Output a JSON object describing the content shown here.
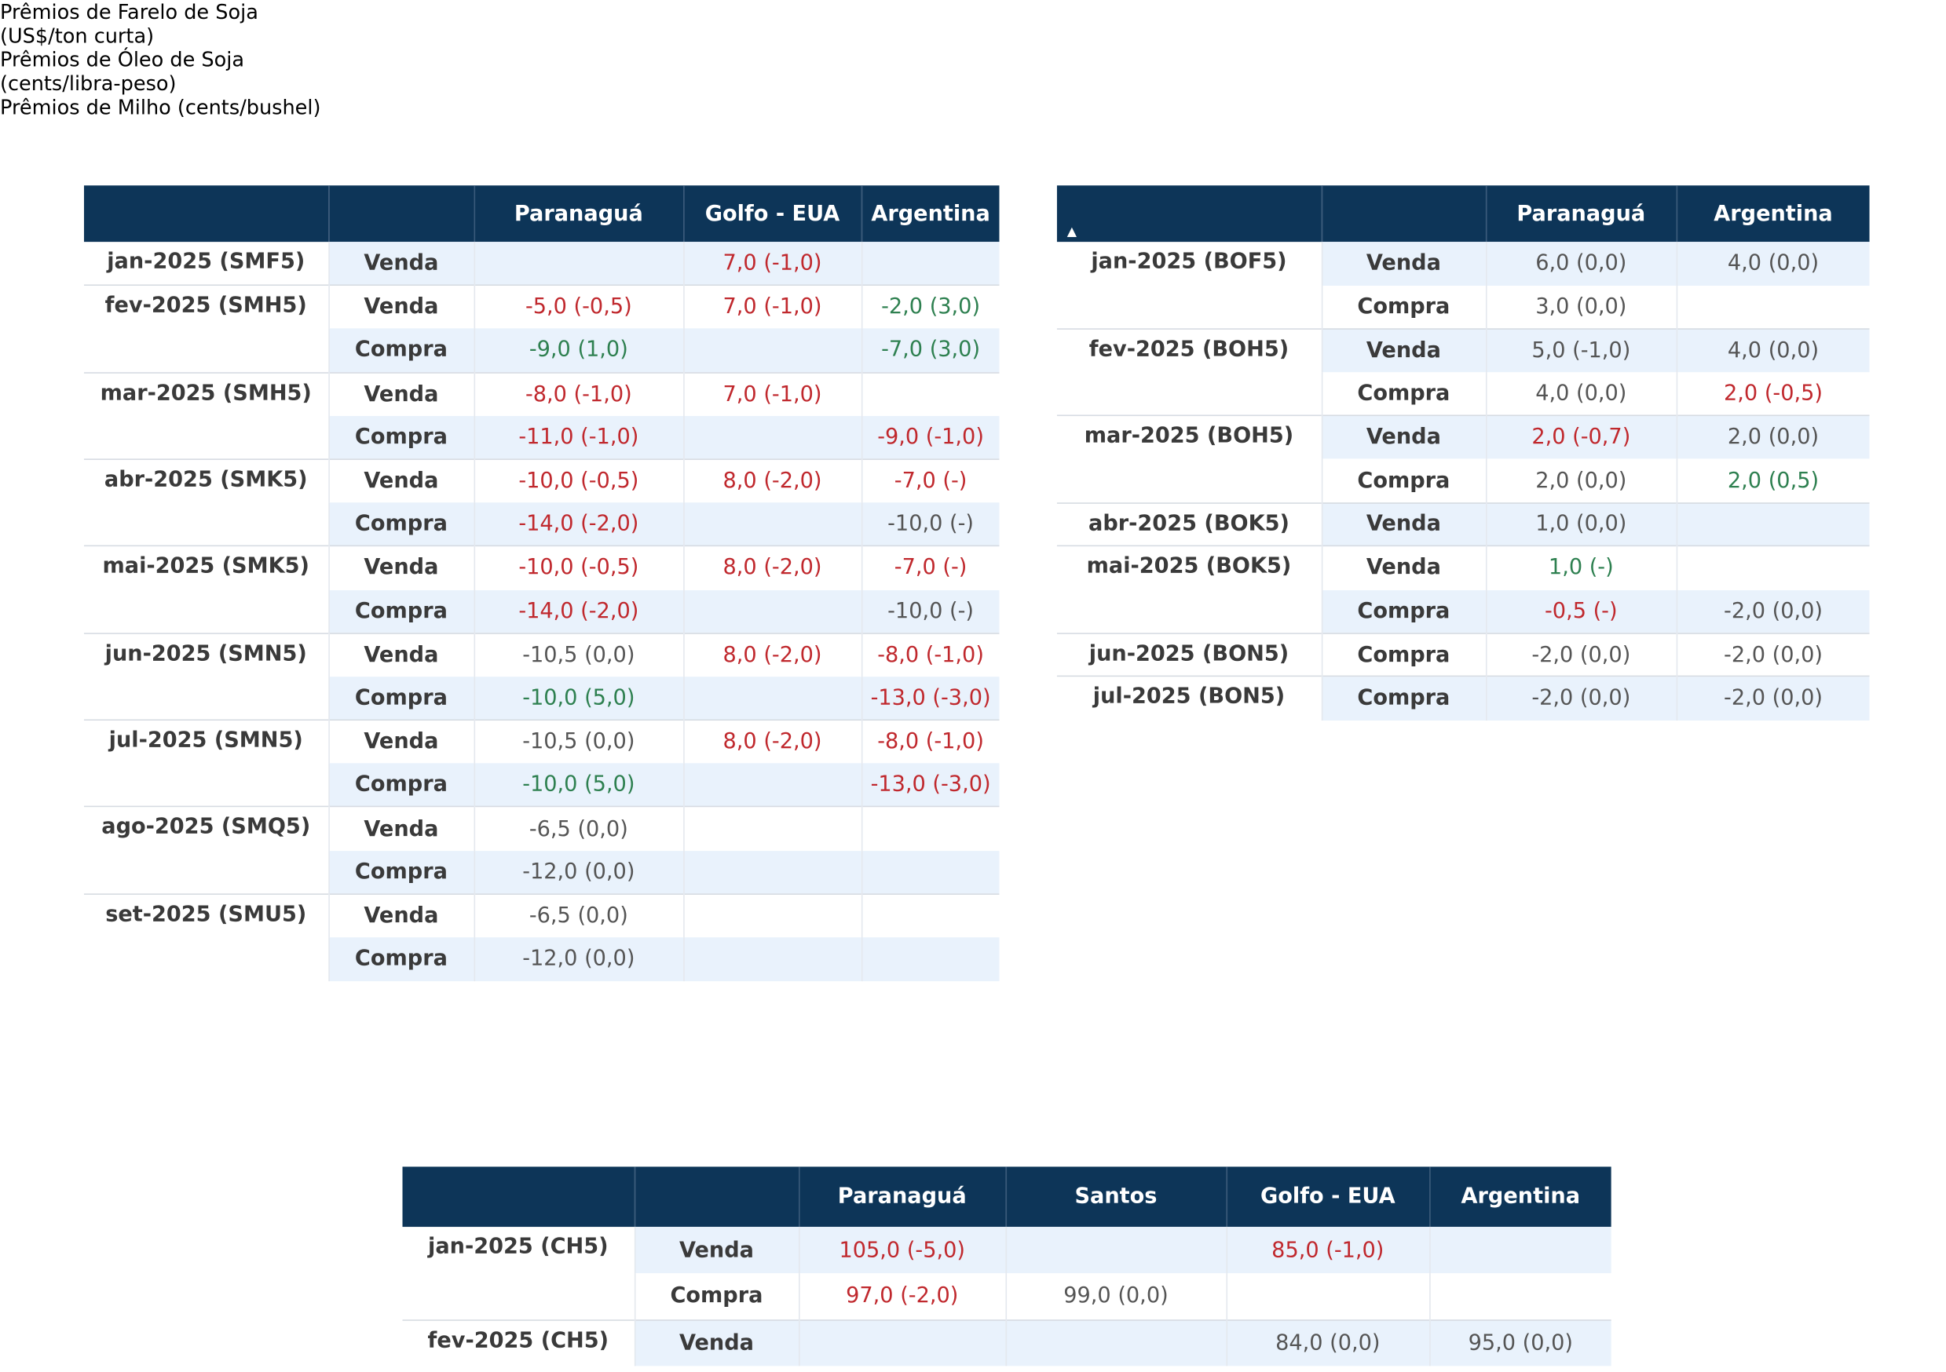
{
  "tables": [
    {
      "title": [
        "Prêmios de Farelo de Soja",
        "(US$/ton curta)"
      ],
      "headers": [
        "Paranaguá",
        "Golfo - EUA",
        "Argentina"
      ],
      "groups": [
        {
          "contract": "jan-2025 (SMF5)",
          "rows": [
            {
              "side": "Venda",
              "cells": [
                null,
                "7,0 (-1,0)",
                null
              ],
              "colors": [
                null,
                "#c0282d",
                null
              ]
            }
          ]
        },
        {
          "contract": "fev-2025 (SMH5)",
          "rows": [
            {
              "side": "Venda",
              "cells": [
                "-5,0 (-0,5)",
                "7,0 (-1,0)",
                "-2,0 (3,0)"
              ],
              "colors": [
                "#c0282d",
                "#c0282d",
                "#2e8050"
              ]
            },
            {
              "side": "Compra",
              "cells": [
                "-9,0 (1,0)",
                null,
                "-7,0 (3,0)"
              ],
              "colors": [
                "#2e8050",
                null,
                "#2e8050"
              ]
            }
          ]
        },
        {
          "contract": "mar-2025 (SMH5)",
          "rows": [
            {
              "side": "Venda",
              "cells": [
                "-8,0 (-1,0)",
                "7,0 (-1,0)",
                null
              ],
              "colors": [
                "#c0282d",
                "#c0282d",
                null
              ]
            },
            {
              "side": "Compra",
              "cells": [
                "-11,0 (-1,0)",
                null,
                "-9,0 (-1,0)"
              ],
              "colors": [
                "#c0282d",
                null,
                "#c0282d"
              ]
            }
          ]
        },
        {
          "contract": "abr-2025 (SMK5)",
          "rows": [
            {
              "side": "Venda",
              "cells": [
                "-10,0 (-0,5)",
                "8,0 (-2,0)",
                "-7,0 (-)"
              ],
              "colors": [
                "#c0282d",
                "#c0282d",
                "#c0282d"
              ]
            },
            {
              "side": "Compra",
              "cells": [
                "-14,0 (-2,0)",
                null,
                "-10,0 (-)"
              ],
              "colors": [
                "#c0282d",
                null,
                "#555555"
              ]
            }
          ]
        },
        {
          "contract": "mai-2025 (SMK5)",
          "rows": [
            {
              "side": "Venda",
              "cells": [
                "-10,0 (-0,5)",
                "8,0 (-2,0)",
                "-7,0 (-)"
              ],
              "colors": [
                "#c0282d",
                "#c0282d",
                "#c0282d"
              ]
            },
            {
              "side": "Compra",
              "cells": [
                "-14,0 (-2,0)",
                null,
                "-10,0 (-)"
              ],
              "colors": [
                "#c0282d",
                null,
                "#555555"
              ]
            }
          ]
        },
        {
          "contract": "jun-2025 (SMN5)",
          "rows": [
            {
              "side": "Venda",
              "cells": [
                "-10,5 (0,0)",
                "8,0 (-2,0)",
                "-8,0 (-1,0)"
              ],
              "colors": [
                "#555555",
                "#c0282d",
                "#c0282d"
              ]
            },
            {
              "side": "Compra",
              "cells": [
                "-10,0 (5,0)",
                null,
                "-13,0 (-3,0)"
              ],
              "colors": [
                "#2e8050",
                null,
                "#c0282d"
              ]
            }
          ]
        },
        {
          "contract": "jul-2025 (SMN5)",
          "rows": [
            {
              "side": "Venda",
              "cells": [
                "-10,5 (0,0)",
                "8,0 (-2,0)",
                "-8,0 (-1,0)"
              ],
              "colors": [
                "#555555",
                "#c0282d",
                "#c0282d"
              ]
            },
            {
              "side": "Compra",
              "cells": [
                "-10,0 (5,0)",
                null,
                "-13,0 (-3,0)"
              ],
              "colors": [
                "#2e8050",
                null,
                "#c0282d"
              ]
            }
          ]
        },
        {
          "contract": "ago-2025 (SMQ5)",
          "rows": [
            {
              "side": "Venda",
              "cells": [
                "-6,5 (0,0)",
                null,
                null
              ],
              "colors": [
                "#555555",
                null,
                null
              ]
            },
            {
              "side": "Compra",
              "cells": [
                "-12,0 (0,0)",
                null,
                null
              ],
              "colors": [
                "#555555",
                null,
                null
              ]
            }
          ]
        },
        {
          "contract": "set-2025 (SMU5)",
          "rows": [
            {
              "side": "Venda",
              "cells": [
                "-6,5 (0,0)",
                null,
                null
              ],
              "colors": [
                "#555555",
                null,
                null
              ]
            },
            {
              "side": "Compra",
              "cells": [
                "-12,0 (0,0)",
                null,
                null
              ],
              "colors": [
                "#555555",
                null,
                null
              ]
            }
          ]
        }
      ]
    },
    {
      "title": [
        "Prêmios de Óleo de Soja",
        "(cents/libra-peso)"
      ],
      "headers": [
        "Paranaguá",
        "Argentina"
      ],
      "groups": [
        {
          "contract": "jan-2025 (BOF5)",
          "rows": [
            {
              "side": "Venda",
              "cells": [
                "6,0 (0,0)",
                "4,0 (0,0)"
              ],
              "colors": [
                "#555555",
                "#555555"
              ]
            },
            {
              "side": "Compra",
              "cells": [
                "3,0 (0,0)",
                null
              ],
              "colors": [
                "#555555",
                null
              ]
            }
          ]
        },
        {
          "contract": "fev-2025 (BOH5)",
          "rows": [
            {
              "side": "Venda",
              "cells": [
                "5,0 (-1,0)",
                "4,0 (0,0)"
              ],
              "colors": [
                "#555555",
                "#555555"
              ]
            },
            {
              "side": "Compra",
              "cells": [
                "4,0 (0,0)",
                "2,0 (-0,5)"
              ],
              "colors": [
                "#555555",
                "#c0282d"
              ]
            }
          ]
        },
        {
          "contract": "mar-2025 (BOH5)",
          "rows": [
            {
              "side": "Venda",
              "cells": [
                "2,0 (-0,7)",
                "2,0 (0,0)"
              ],
              "colors": [
                "#c0282d",
                "#555555"
              ]
            },
            {
              "side": "Compra",
              "cells": [
                "2,0 (0,0)",
                "2,0 (0,5)"
              ],
              "colors": [
                "#555555",
                "#2e8050"
              ]
            }
          ]
        },
        {
          "contract": "abr-2025 (BOK5)",
          "rows": [
            {
              "side": "Venda",
              "cells": [
                "1,0 (0,0)",
                null
              ],
              "colors": [
                "#555555",
                null
              ]
            }
          ]
        },
        {
          "contract": "mai-2025 (BOK5)",
          "rows": [
            {
              "side": "Venda",
              "cells": [
                "1,0 (-)",
                null
              ],
              "colors": [
                "#2e8050",
                null
              ]
            },
            {
              "side": "Compra",
              "cells": [
                "-0,5 (-)",
                "-2,0 (0,0)"
              ],
              "colors": [
                "#c0282d",
                "#555555"
              ]
            }
          ]
        },
        {
          "contract": "jun-2025 (BON5)",
          "rows": [
            {
              "side": "Compra",
              "cells": [
                "-2,0 (0,0)",
                "-2,0 (0,0)"
              ],
              "colors": [
                "#555555",
                "#555555"
              ]
            }
          ]
        },
        {
          "contract": "jul-2025 (BON5)",
          "rows": [
            {
              "side": "Compra",
              "cells": [
                "-2,0 (0,0)",
                "-2,0 (0,0)"
              ],
              "colors": [
                "#555555",
                "#555555"
              ]
            }
          ]
        }
      ]
    },
    {
      "title": [
        "Prêmios de Milho (cents/bushel)"
      ],
      "headers": [
        "Paranaguá",
        "Santos",
        "Golfo - EUA",
        "Argentina"
      ],
      "groups": [
        {
          "contract": "jan-2025 (CH5)",
          "rows": [
            {
              "side": "Venda",
              "cells": [
                "105,0 (-5,0)",
                null,
                "85,0 (-1,0)",
                null
              ],
              "colors": [
                "#c0282d",
                null,
                "#c0282d",
                null
              ]
            },
            {
              "side": "Compra",
              "cells": [
                "97,0 (-2,0)",
                "99,0 (0,0)",
                null,
                null
              ],
              "colors": [
                "#c0282d",
                "#555555",
                null,
                null
              ]
            }
          ]
        },
        {
          "contract": "fev-2025 (CH5)",
          "rows": [
            {
              "side": "Venda",
              "cells": [
                null,
                null,
                "84,0 (0,0)",
                "95,0 (0,0)"
              ],
              "colors": [
                null,
                null,
                "#555555",
                "#555555"
              ]
            }
          ]
        }
      ]
    }
  ]
}
